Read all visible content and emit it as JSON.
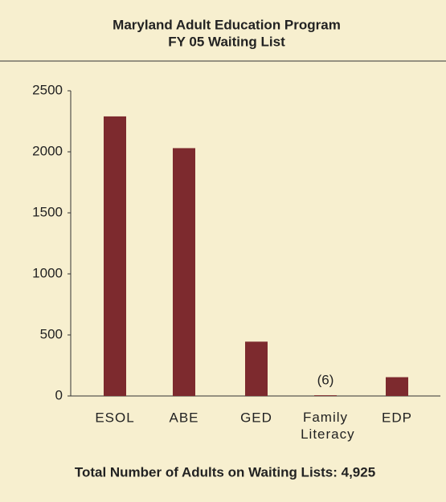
{
  "chart_data": {
    "type": "bar",
    "title": "Maryland Adult Education Program",
    "subtitle": "FY 05 Waiting List",
    "categories": [
      "ESOL",
      "ABE",
      "GED",
      "Family Literacy",
      "EDP"
    ],
    "values": [
      2290,
      2030,
      445,
      6,
      154
    ],
    "value_labels": [
      null,
      null,
      null,
      "(6)",
      null
    ],
    "color": "#7d2a2e",
    "ylim": [
      0,
      2500
    ],
    "yticks": [
      0,
      500,
      1000,
      1500,
      2000,
      2500
    ],
    "grid": false,
    "footer": "Total Number of Adults on Waiting Lists: 4,925"
  }
}
